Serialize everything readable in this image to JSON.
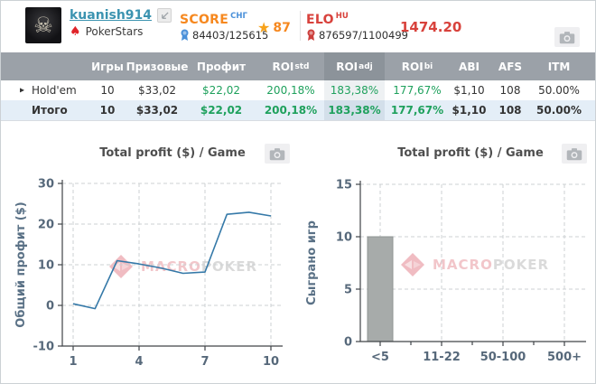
{
  "header": {
    "username": "kuanish914",
    "network": "PokerStars",
    "score": {
      "label": "SCORE",
      "region": "СНГ",
      "value": "84403/125615",
      "star": "87"
    },
    "elo": {
      "label": "ELO",
      "region": "HU",
      "value": "876597/1100499",
      "rating": "1474.20"
    }
  },
  "table": {
    "columns": [
      {
        "label": "Игры"
      },
      {
        "label": "Призовые"
      },
      {
        "label": "Профит"
      },
      {
        "label": "ROI",
        "sup": "std"
      },
      {
        "label": "ROI",
        "sup": "adj"
      },
      {
        "label": "ROI",
        "sup": "bi"
      },
      {
        "label": "ABI"
      },
      {
        "label": "AFS"
      },
      {
        "label": "ITM"
      }
    ],
    "highlight_sup": "adj",
    "rows": [
      {
        "name": "Hold'em",
        "expandable": true,
        "values": [
          "10",
          "$33,02",
          "$22,02",
          "200,18%",
          "183,38%",
          "177,67%",
          "$1,10",
          "108",
          "50.00%"
        ]
      },
      {
        "name": "Итого",
        "total": true,
        "values": [
          "10",
          "$33,02",
          "$22,02",
          "200,18%",
          "183,38%",
          "177,67%",
          "$1,10",
          "108",
          "50.00%"
        ]
      }
    ]
  },
  "watermark": {
    "part1": "MACRO",
    "part2": "POKER"
  },
  "colors": {
    "positive": "#1fa15d",
    "accent_orange": "#f6881f",
    "accent_blue": "#4a90d9",
    "accent_red": "#d8423c",
    "line": "#3579a8",
    "bar": "#a7abaa",
    "bar_border": "#8f9493",
    "watermark_pink": "#f2c6ca",
    "watermark_gray": "#dadada"
  },
  "chart_data": [
    {
      "type": "line",
      "title": "Total profit ($) / Game",
      "xlabel": "",
      "ylabel": "Общий профит ($)",
      "x": [
        1,
        2,
        3,
        4,
        5,
        6,
        7,
        8,
        9,
        10
      ],
      "y": [
        0.4,
        -0.8,
        11,
        10.2,
        9.2,
        7.9,
        8.2,
        22.4,
        22.9,
        22
      ],
      "xticks": [
        1,
        4,
        7,
        10
      ],
      "yticks": [
        -10,
        0,
        10,
        20,
        30
      ],
      "xlim": [
        1,
        10
      ],
      "ylim": [
        -10,
        30
      ],
      "grid": true,
      "legend": false
    },
    {
      "type": "bar",
      "title": "Total profit ($) / Game",
      "xlabel": "",
      "ylabel": "Сыграно игр",
      "categories": [
        "<5",
        "11-22",
        "50-100",
        "500+"
      ],
      "values": [
        10,
        0,
        0,
        0
      ],
      "yticks": [
        0,
        5,
        10,
        15
      ],
      "ylim": [
        0,
        15
      ],
      "grid": true,
      "legend": false
    }
  ]
}
